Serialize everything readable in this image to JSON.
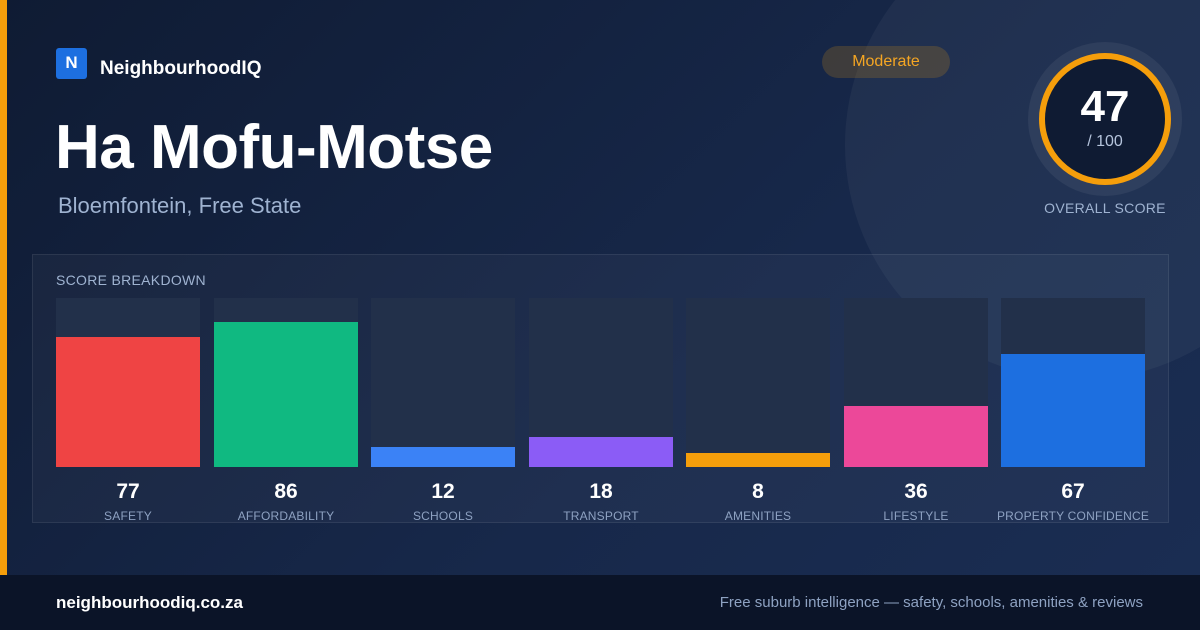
{
  "brand": {
    "logo_letter": "N",
    "name": "NeighbourhoodIQ"
  },
  "suburb": {
    "name": "Ha Mofu-Motse",
    "location": "Bloemfontein, Free State"
  },
  "rating_badge": "Moderate",
  "overall": {
    "score": "47",
    "max": "/ 100",
    "label": "OVERALL SCORE",
    "value": 47,
    "out_of": 100
  },
  "colors": {
    "accent": "#f59e0b",
    "ring": "#f59e0b",
    "brand": "#1d6fe0"
  },
  "breakdown": {
    "title": "SCORE BREAKDOWN",
    "max": 100,
    "items": [
      {
        "label": "SAFETY",
        "value": 77,
        "color": "#ef4444"
      },
      {
        "label": "AFFORDABILITY",
        "value": 86,
        "color": "#10b981"
      },
      {
        "label": "SCHOOLS",
        "value": 12,
        "color": "#3b82f6"
      },
      {
        "label": "TRANSPORT",
        "value": 18,
        "color": "#8b5cf6"
      },
      {
        "label": "AMENITIES",
        "value": 8,
        "color": "#f59e0b"
      },
      {
        "label": "LIFESTYLE",
        "value": 36,
        "color": "#ec4899"
      },
      {
        "label": "PROPERTY CONFIDENCE",
        "value": 67,
        "color": "#1d6fe0"
      }
    ]
  },
  "footer": {
    "url": "neighbourhoodiq.co.za",
    "tagline": "Free suburb intelligence — safety, schools, amenities & reviews"
  }
}
